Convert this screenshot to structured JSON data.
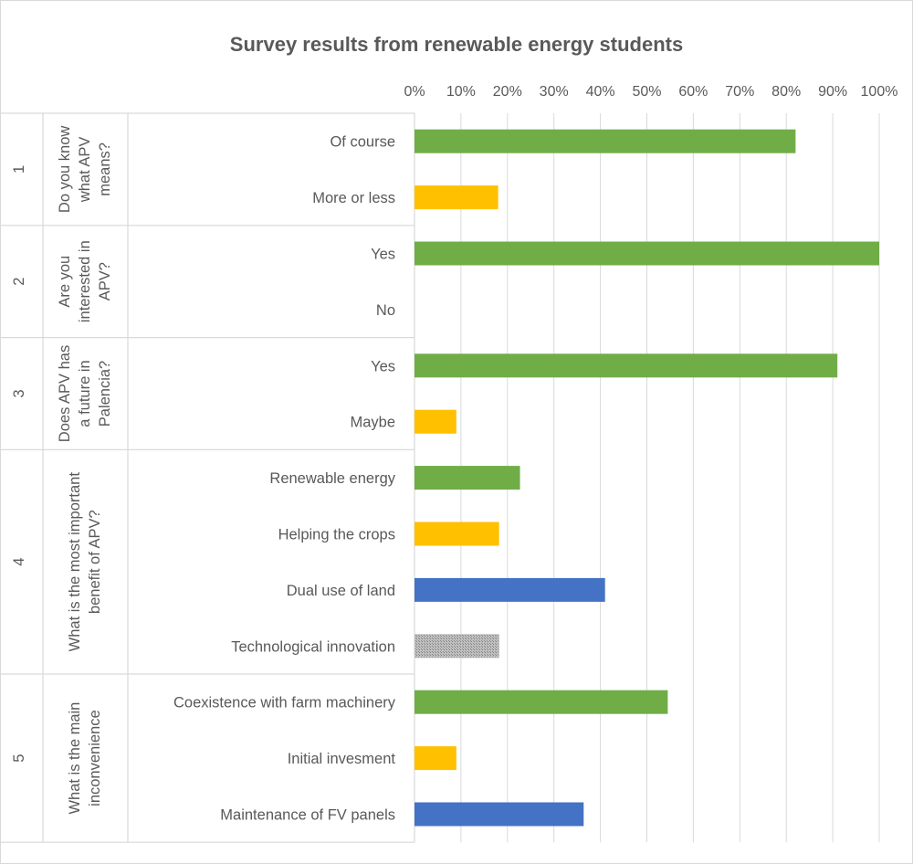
{
  "chart_data": {
    "type": "bar",
    "orientation": "horizontal",
    "title": "Survey results from renewable energy students",
    "x_ticks": [
      "0%",
      "10%",
      "20%",
      "30%",
      "40%",
      "50%",
      "60%",
      "70%",
      "80%",
      "90%",
      "100%"
    ],
    "xlim": [
      0,
      100
    ],
    "grid": true,
    "grid_axis": "x",
    "groups": [
      {
        "number": "1",
        "question": [
          "Do you know",
          "what APV",
          "means?"
        ],
        "items": [
          {
            "label": "Of course",
            "value": 82,
            "color": "#70ad47"
          },
          {
            "label": "More or less",
            "value": 18,
            "color": "#ffc000"
          }
        ]
      },
      {
        "number": "2",
        "question": [
          "Are you",
          "interested in",
          "APV?"
        ],
        "items": [
          {
            "label": "Yes",
            "value": 100,
            "color": "#70ad47"
          },
          {
            "label": "No",
            "value": 0,
            "color": "#ffc000"
          }
        ]
      },
      {
        "number": "3",
        "question": [
          "Does APV has",
          "a future in",
          "Palencia?"
        ],
        "items": [
          {
            "label": "Yes",
            "value": 91,
            "color": "#70ad47"
          },
          {
            "label": "Maybe",
            "value": 9,
            "color": "#ffc000"
          }
        ]
      },
      {
        "number": "4",
        "question": [
          "What is the most important",
          "benefit of APV?"
        ],
        "items": [
          {
            "label": "Renewable energy",
            "value": 22.7,
            "color": "#70ad47"
          },
          {
            "label": "Helping the crops",
            "value": 18.2,
            "color": "#ffc000"
          },
          {
            "label": "Dual use of land",
            "value": 41,
            "color": "#4472c4"
          },
          {
            "label": "Technological innovation",
            "value": 18.2,
            "color": "#a5a5a5",
            "pattern": true
          }
        ]
      },
      {
        "number": "5",
        "question": [
          "What is the main",
          "inconvenience"
        ],
        "items": [
          {
            "label": "Coexistence with farm machinery",
            "value": 54.5,
            "color": "#70ad47"
          },
          {
            "label": "Initial invesment",
            "value": 9,
            "color": "#ffc000"
          },
          {
            "label": "Maintenance of FV panels",
            "value": 36.4,
            "color": "#4472c4"
          }
        ]
      }
    ]
  }
}
